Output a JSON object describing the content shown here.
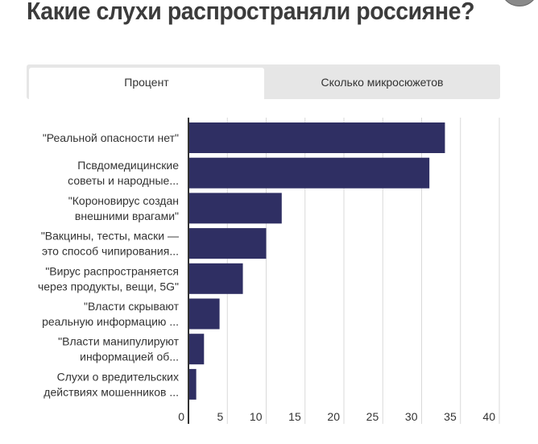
{
  "title": "Какие слухи распространяли россияне?",
  "tabs": [
    {
      "label": "Процент",
      "active": true
    },
    {
      "label": "Сколько микросюжетов",
      "active": false
    }
  ],
  "colors": {
    "bar": "#2f2f63",
    "grid": "#d9d9d9",
    "axis": "#333333"
  },
  "chart_data": {
    "type": "bar",
    "orientation": "horizontal",
    "categories": [
      [
        "\"Реальной опасности нет\""
      ],
      [
        "Псвдомедицинские",
        "советы и народные..."
      ],
      [
        "\"Короновирус создан",
        "внешними врагами\""
      ],
      [
        "\"Вакцины, тесты, маски —",
        "это способ чипирования..."
      ],
      [
        "\"Вирус распространяется",
        "через продукты, вещи, 5G\""
      ],
      [
        "\"Власти скрывают",
        "реальную информацию ..."
      ],
      [
        "\"Власти манипулируют",
        "информацией об..."
      ],
      [
        "Слухи о вредительских",
        "действиях мошенников ..."
      ]
    ],
    "values": [
      33,
      31,
      12,
      10,
      7,
      4,
      2,
      1
    ],
    "xlim": [
      0,
      40
    ],
    "xticks": [
      "0",
      "5",
      "10",
      "15",
      "20",
      "25",
      "30",
      "35",
      "40"
    ],
    "grid": true
  }
}
